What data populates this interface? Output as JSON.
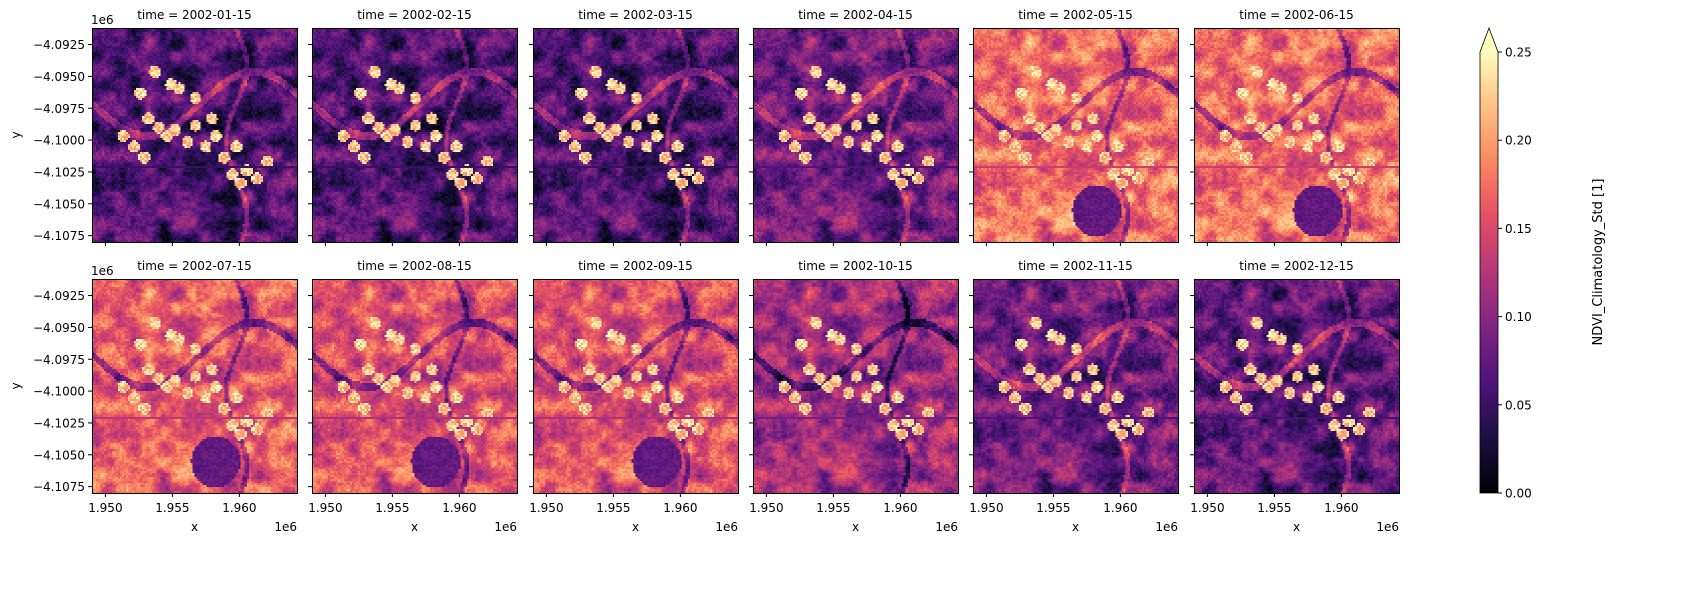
{
  "chart_data": {
    "type": "heatmap",
    "layout": "facet grid, 2 rows x 6 columns, shared axes",
    "facet_titles": [
      "time = 2002-01-15",
      "time = 2002-02-15",
      "time = 2002-03-15",
      "time = 2002-04-15",
      "time = 2002-05-15",
      "time = 2002-06-15",
      "time = 2002-07-15",
      "time = 2002-08-15",
      "time = 2002-09-15",
      "time = 2002-10-15",
      "time = 2002-11-15",
      "time = 2002-12-15"
    ],
    "xlabel": "x",
    "ylabel": "y",
    "x_offset_label": "1e6",
    "y_offset_label": "1e6",
    "x_ticks": [
      1.95,
      1.955,
      1.96
    ],
    "x_tick_labels": [
      "1.950",
      "1.955",
      "1.960"
    ],
    "xlim": [
      1.949,
      1.9643
    ],
    "y_ticks": [
      -4.0925,
      -4.095,
      -4.0975,
      -4.1,
      -4.1025,
      -4.105,
      -4.1075
    ],
    "y_tick_labels": [
      "−4.0925",
      "−4.0950",
      "−4.0975",
      "−4.1000",
      "−4.1025",
      "−4.1050",
      "−4.1075"
    ],
    "ylim": [
      -4.108,
      -4.0912
    ],
    "colorbar": {
      "label": "NDVI_Climatology_Std [1]",
      "colormap": "magma",
      "range": [
        0.0,
        0.25
      ],
      "extend": "max",
      "ticks": [
        0.0,
        0.05,
        0.1,
        0.15,
        0.2,
        0.25
      ],
      "tick_labels": [
        "0.00",
        "0.05",
        "0.10",
        "0.15",
        "0.20",
        "0.25"
      ]
    }
  }
}
